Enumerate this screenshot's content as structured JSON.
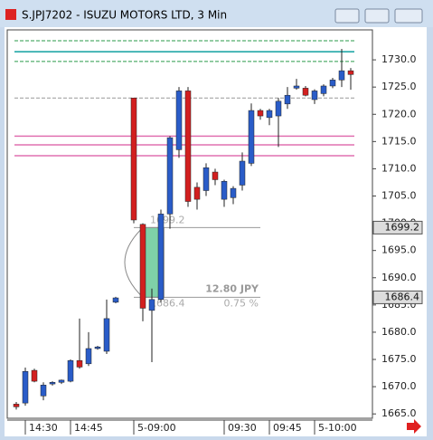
{
  "chart_data": {
    "type": "candlestick",
    "title": "S.JPJ7202 - ISUZU MOTORS LTD, 3 Min",
    "categories": [
      null,
      "14:30",
      null,
      null,
      null,
      null,
      "14:45",
      null,
      null,
      null,
      null,
      null,
      null,
      "5-09:00",
      null,
      null,
      null,
      null,
      null,
      null,
      null,
      null,
      null,
      "09:30",
      null,
      null,
      null,
      null,
      "09:45",
      null,
      null,
      null,
      null,
      "5-10:00",
      null,
      null,
      null,
      null
    ],
    "open": [
      1666.8,
      1667,
      1673,
      1668.3,
      1670.5,
      1670.8,
      1671,
      1674.8,
      1674.2,
      1677,
      1676.5,
      1685.5,
      null,
      1723,
      1699.8,
      1684,
      1686,
      1701.7,
      1713.5,
      1724.3,
      1706.6,
      1706,
      1709.4,
      1704.4,
      1704.7,
      1707,
      1711,
      1720.7,
      1719.4,
      1719.7,
      1721.9,
      1724.8,
      1724.8,
      1722.7,
      1723.8,
      1725.2,
      1726.3,
      1728
    ],
    "high": [
      1667.2,
      1673.5,
      1673.3,
      1670.8,
      1671,
      1671.3,
      1675,
      1682.5,
      1680,
      1677.5,
      1686,
      1686.5,
      null,
      1723,
      1700,
      1688,
      1702.5,
      1716,
      1725,
      1725,
      1707.5,
      1711,
      1710,
      1708,
      1706.8,
      1713,
      1722,
      1721,
      1721,
      1723,
      1725,
      1726.5,
      1725.2,
      1724.6,
      1725.5,
      1726.7,
      1732,
      1728.5
    ],
    "low": [
      1665.8,
      1666.5,
      1670.8,
      1667.5,
      1670.2,
      1670.5,
      1670.8,
      1673.3,
      1673.8,
      1676.8,
      1676,
      1685.3,
      null,
      1700,
      1682,
      1674.5,
      1685.5,
      1699,
      1712,
      1703,
      1702.5,
      1705,
      1707,
      1703,
      1703.5,
      1706,
      1710.5,
      1719,
      1718,
      1714,
      1721,
      1724.5,
      1723.3,
      1721.9,
      1723.3,
      1724.8,
      1725,
      1724.5
    ],
    "close": [
      1666.3,
      1672.8,
      1671,
      1670.3,
      1670.8,
      1671.2,
      1674.8,
      1673.6,
      1677,
      1677.3,
      1682.5,
      1686.3,
      null,
      1700.6,
      1684.4,
      1686,
      1701.7,
      1715.7,
      1724.3,
      1704,
      1704.4,
      1710.2,
      1708,
      1707.7,
      1706.4,
      1711.4,
      1720.7,
      1719.7,
      1720.7,
      1722.4,
      1723.5,
      1725.2,
      1723.5,
      1724.3,
      1725.2,
      1726.3,
      1728,
      1727.3
    ],
    "up_color": "#2a5cc8",
    "down_color": "#d21f1f",
    "ylim": [
      1664.2,
      1735.5
    ],
    "yticks": [
      {
        "value": 1665,
        "label": "1665.0"
      },
      {
        "value": 1670,
        "label": "1670.0"
      },
      {
        "value": 1675,
        "label": "1675.0"
      },
      {
        "value": 1680,
        "label": "1680.0"
      },
      {
        "value": 1685,
        "label": "1685.0"
      },
      {
        "value": 1690,
        "label": "1690.0"
      },
      {
        "value": 1695,
        "label": "1695.0"
      },
      {
        "value": 1700,
        "label": "1700.0"
      },
      {
        "value": 1705,
        "label": "1705.0"
      },
      {
        "value": 1710,
        "label": "1710.0"
      },
      {
        "value": 1715,
        "label": "1715.0"
      },
      {
        "value": 1720,
        "label": "1720.0"
      },
      {
        "value": 1725,
        "label": "1725.0"
      },
      {
        "value": 1730,
        "label": "1730.0"
      }
    ],
    "levels": [
      {
        "value": 1733.5,
        "color": "#2a9a4a",
        "dashed": true
      },
      {
        "value": 1731.5,
        "color": "#10a0a0",
        "dashed": false
      },
      {
        "value": 1729.7,
        "color": "#2a9a4a",
        "dashed": true
      },
      {
        "value": 1723,
        "color": "#999999",
        "dashed": true
      },
      {
        "value": 1716,
        "color": "#e070b0",
        "dashed": false
      },
      {
        "value": 1714.4,
        "color": "#e070b0",
        "dashed": false
      },
      {
        "value": 1712.4,
        "color": "#e070b0",
        "dashed": false
      }
    ],
    "measure": {
      "high": 1699.2,
      "low": 1686.4,
      "change_label": "12.80 JPY",
      "percent_label": "0.75 %",
      "color": "#7fd1a8"
    }
  }
}
